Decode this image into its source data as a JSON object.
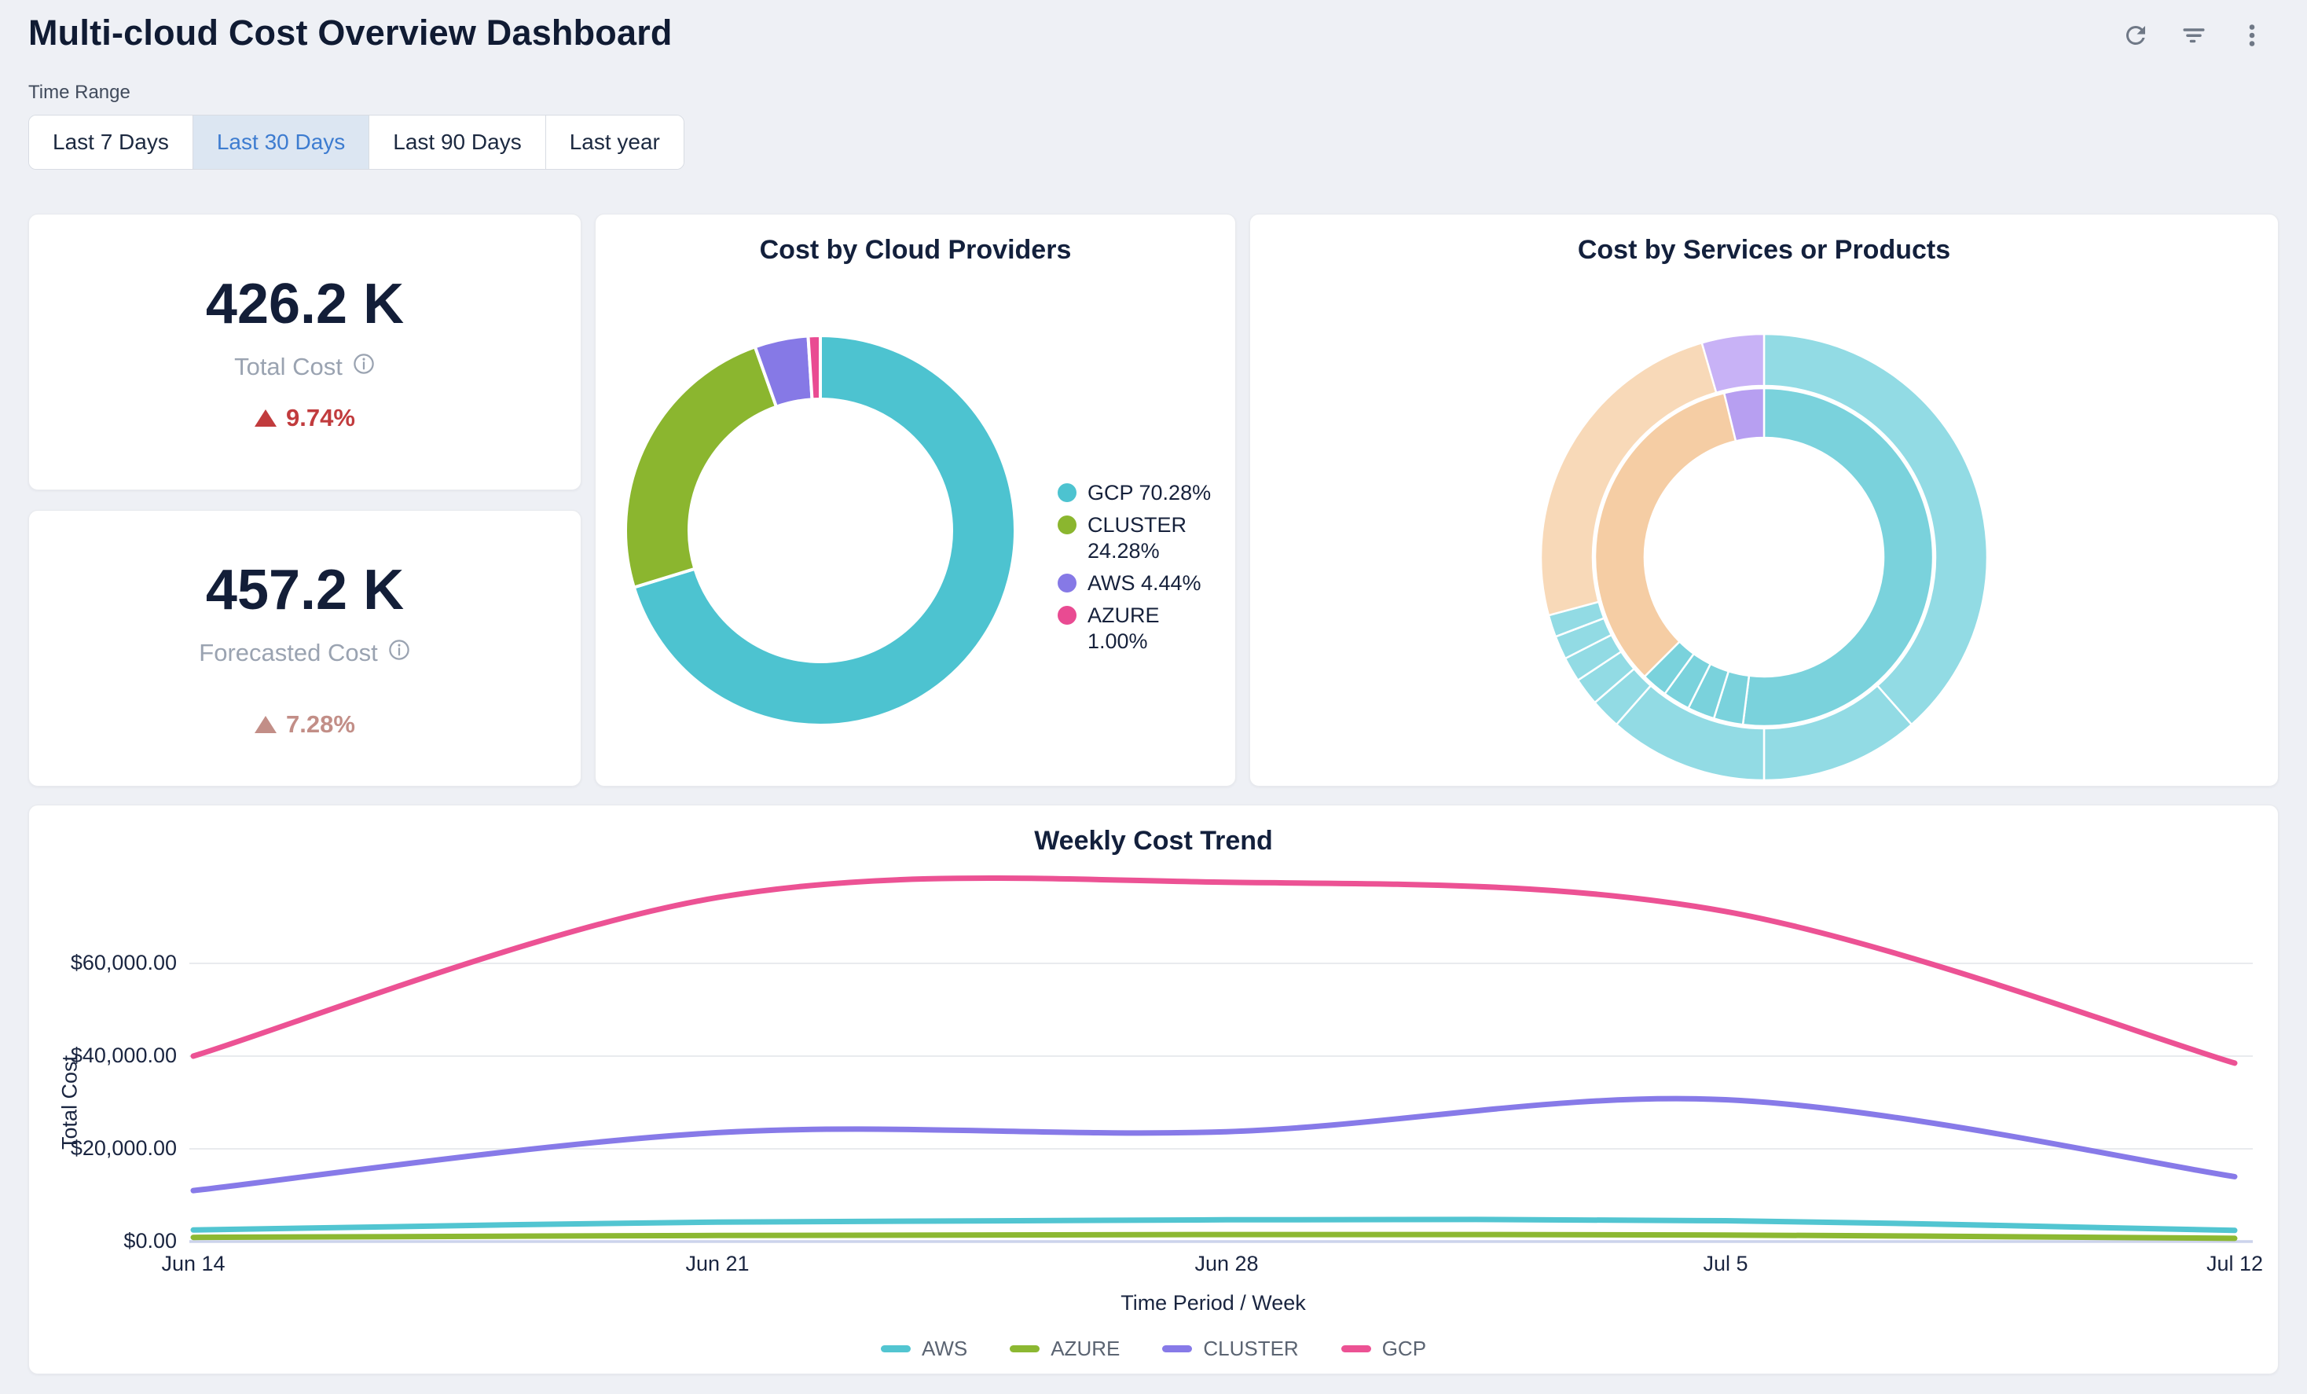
{
  "header": {
    "title": "Multi-cloud Cost Overview Dashboard",
    "actions": [
      {
        "icon": "refresh-icon"
      },
      {
        "icon": "filter-icon"
      },
      {
        "icon": "kebab-menu-icon"
      }
    ]
  },
  "time_range": {
    "label": "Time Range",
    "options": [
      {
        "label": "Last 7 Days",
        "selected": false
      },
      {
        "label": "Last 30 Days",
        "selected": true
      },
      {
        "label": "Last 90 Days",
        "selected": false
      },
      {
        "label": "Last year",
        "selected": false
      }
    ],
    "selected_bg": "#dce6f2",
    "selected_text": "#3d7cd0"
  },
  "stats": {
    "total": {
      "value": "426.2 K",
      "label": "Total Cost",
      "delta": "9.74%",
      "direction": "up",
      "delta_color": "#c13b3d"
    },
    "forecast": {
      "value": "457.2 K",
      "label": "Forecasted Cost",
      "delta": "7.28%",
      "direction": "up",
      "delta_color": "#c28e87"
    }
  },
  "chart_data": [
    {
      "type": "pie",
      "variant": "donut",
      "title": "Cost by Cloud Providers",
      "legend_position": "right",
      "series": [
        {
          "name": "GCP",
          "value": 70.28,
          "color": "#4dc3d0"
        },
        {
          "name": "CLUSTER",
          "value": 24.28,
          "color": "#8bb62f"
        },
        {
          "name": "AWS",
          "value": 4.44,
          "color": "#8679e6"
        },
        {
          "name": "AZURE",
          "value": 1.0,
          "color": "#e94b92"
        }
      ],
      "legend": [
        {
          "label": "GCP 70.28%",
          "color": "#4dc3d0"
        },
        {
          "label": "CLUSTER 24.28%",
          "color": "#8bb62f"
        },
        {
          "label": "AWS 4.44%",
          "color": "#8679e6"
        },
        {
          "label": "AZURE 1.00%",
          "color": "#e94b92"
        }
      ]
    },
    {
      "type": "pie",
      "variant": "sunburst",
      "title": "Cost by Services or Products",
      "legend_position": "none",
      "rings": {
        "outer": [
          {
            "start": 0.0,
            "end": 0.385,
            "color": "#92dbe4"
          },
          {
            "start": 0.385,
            "end": 0.5,
            "color": "#92dbe4"
          },
          {
            "start": 0.5,
            "end": 0.615,
            "color": "#92dbe4"
          },
          {
            "start": 0.615,
            "end": 0.637,
            "color": "#92dbe4"
          },
          {
            "start": 0.637,
            "end": 0.657,
            "color": "#92dbe4"
          },
          {
            "start": 0.657,
            "end": 0.675,
            "color": "#92dbe4"
          },
          {
            "start": 0.675,
            "end": 0.692,
            "color": "#92dbe4"
          },
          {
            "start": 0.692,
            "end": 0.708,
            "color": "#92dbe4"
          },
          {
            "start": 0.708,
            "end": 0.955,
            "color": "#f8d9b8"
          },
          {
            "start": 0.955,
            "end": 1.0,
            "color": "#c8b2f6"
          }
        ],
        "inner": [
          {
            "start": 0.0,
            "end": 0.52,
            "color": "#7ad2dc"
          },
          {
            "start": 0.52,
            "end": 0.548,
            "color": "#7ad2dc"
          },
          {
            "start": 0.548,
            "end": 0.574,
            "color": "#7ad2dc"
          },
          {
            "start": 0.574,
            "end": 0.6,
            "color": "#7ad2dc"
          },
          {
            "start": 0.6,
            "end": 0.625,
            "color": "#7ad2dc"
          },
          {
            "start": 0.625,
            "end": 0.962,
            "color": "#f5cda4"
          },
          {
            "start": 0.962,
            "end": 1.0,
            "color": "#b79ff1"
          }
        ]
      }
    },
    {
      "type": "line",
      "title": "Weekly Cost Trend",
      "xlabel": "Time Period / Week",
      "ylabel": "Total Cost",
      "x": [
        "Jun 14",
        "Jun 21",
        "Jun 28",
        "Jul 5",
        "Jul 12"
      ],
      "series": [
        {
          "name": "AWS",
          "color": "#52c5d1",
          "values": [
            2500,
            4200,
            4700,
            4500,
            2400
          ]
        },
        {
          "name": "AZURE",
          "color": "#8cb832",
          "values": [
            900,
            1300,
            1500,
            1400,
            700
          ]
        },
        {
          "name": "CLUSTER",
          "color": "#877ae8",
          "values": [
            11000,
            23500,
            23700,
            30600,
            14000
          ]
        },
        {
          "name": "GCP",
          "color": "#ec5294",
          "values": [
            40000,
            74200,
            77500,
            71200,
            38500
          ]
        }
      ],
      "y_ticks": [
        {
          "label": "$60,000.00",
          "value": 60000
        },
        {
          "label": "$40,000.00",
          "value": 40000
        },
        {
          "label": "$20,000.00",
          "value": 20000
        },
        {
          "label": "$0.00",
          "value": 0
        }
      ],
      "ylim": [
        0,
        80000
      ],
      "grid": true,
      "legend_position": "bottom"
    }
  ]
}
